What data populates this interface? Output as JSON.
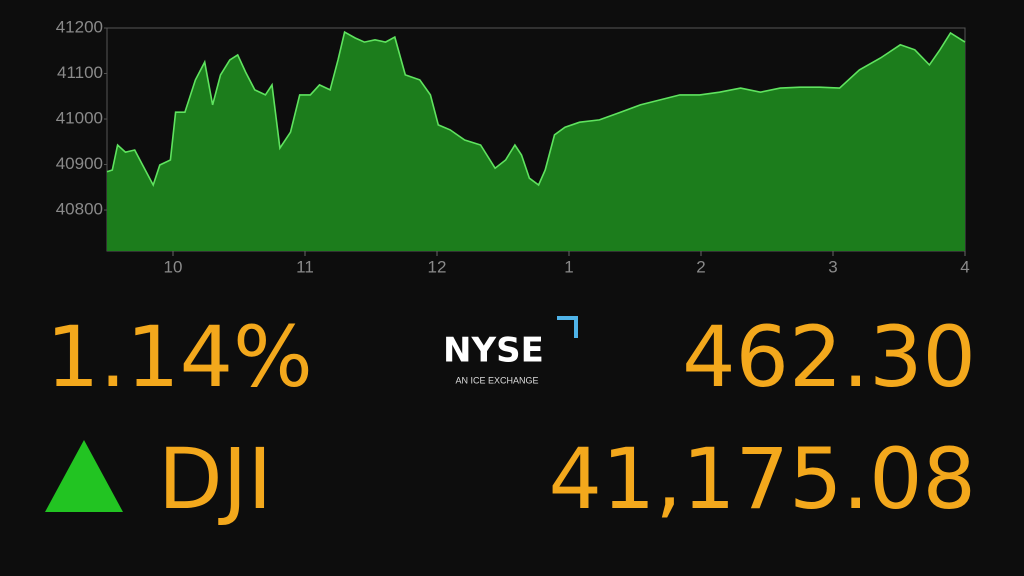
{
  "chart_data": {
    "type": "area",
    "color": "#1c7d1c",
    "line_color": "#5fe35f",
    "x": [
      9.5,
      9.54,
      9.58,
      9.64,
      9.71,
      9.77,
      9.85,
      9.9,
      9.98,
      10.02,
      10.09,
      10.17,
      10.24,
      10.3,
      10.36,
      10.43,
      10.49,
      10.55,
      10.62,
      10.7,
      10.75,
      10.81,
      10.89,
      10.96,
      11.04,
      11.11,
      11.19,
      11.25,
      11.3,
      11.38,
      11.45,
      11.53,
      11.61,
      11.68,
      11.76,
      11.87,
      11.95,
      12.01,
      12.1,
      12.21,
      12.33,
      12.44,
      12.52,
      12.59,
      12.64,
      12.7,
      12.77,
      12.82,
      12.89,
      12.97,
      13.08,
      13.23,
      13.39,
      13.54,
      13.69,
      13.84,
      13.99,
      14.14,
      14.3,
      14.45,
      14.6,
      14.75,
      14.9,
      15.05,
      15.2,
      15.36,
      15.51,
      15.62,
      15.73,
      15.81,
      15.89,
      16
    ],
    "values": [
      40884,
      40888,
      40943,
      40927,
      40932,
      40899,
      40855,
      40899,
      40910,
      41015,
      41015,
      41086,
      41125,
      41031,
      41097,
      41130,
      41141,
      41103,
      41064,
      41053,
      41075,
      40936,
      40971,
      41053,
      41053,
      41075,
      41064,
      41130,
      41191,
      41178,
      41169,
      41174,
      41169,
      41180,
      41097,
      41086,
      41053,
      40987,
      40976,
      40954,
      40943,
      40892,
      40910,
      40943,
      40921,
      40870,
      40855,
      40888,
      40965,
      40982,
      40993,
      40998,
      41015,
      41031,
      41042,
      41053,
      41053,
      41059,
      41068,
      41059,
      41068,
      41070,
      41070,
      41068,
      41108,
      41134,
      41163,
      41152,
      41119,
      41152,
      41189,
      41169
    ],
    "xlim": [
      9.5,
      16
    ],
    "xticks": [
      10,
      11,
      12,
      {
        "value": 13,
        "label": "1"
      },
      {
        "value": 14,
        "label": "2"
      },
      {
        "value": 15,
        "label": "3"
      },
      {
        "value": 16,
        "label": "4"
      }
    ],
    "ylim": [
      40710,
      41200
    ],
    "yticks": [
      40800,
      40900,
      41000,
      41100,
      41200
    ]
  },
  "ticker": {
    "change_percent": "1.14%",
    "points_change": "462.30",
    "symbol": "DJI",
    "index_value": "41,175.08",
    "exchange": "NYSE",
    "exchange_tagline": "AN ICE EXCHANGE"
  }
}
